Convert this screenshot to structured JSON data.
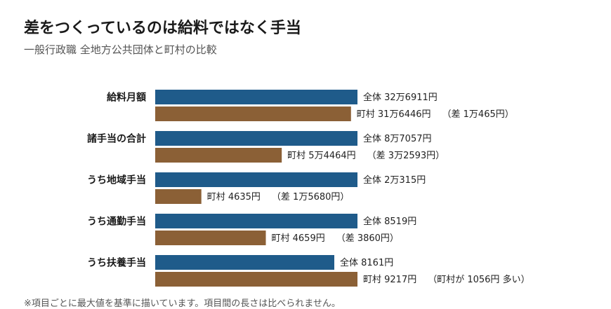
{
  "title": "差をつくっているのは給料ではなく手当",
  "subtitle": "一般行政職 全地方公共団体と町村の比較",
  "footnote": "※項目ごとに最大値を基準に描いています。項目間の長さは比べられません。",
  "colors": {
    "all": "#1f5b8a",
    "town": "#8b6036"
  },
  "chart_data": {
    "type": "bar",
    "orientation": "horizontal",
    "categories": [
      "給料月額",
      "諸手当の合計",
      "うち地域手当",
      "うち通勤手当",
      "うち扶養手当"
    ],
    "series": [
      {
        "name": "全体",
        "values": [
          326911,
          87057,
          20315,
          8519,
          8161
        ]
      },
      {
        "name": "町村",
        "values": [
          316446,
          54464,
          4635,
          4659,
          9217
        ]
      }
    ],
    "labels": {
      "all": [
        "全体 32万6911円",
        "全体 8万7057円",
        "全体 2万315円",
        "全体 8519円",
        "全体 8161円"
      ],
      "town": [
        "町村 31万6446円",
        "町村 5万4464円",
        "町村 4635円",
        "町村 4659円",
        "町村 9217円"
      ],
      "diff": [
        "（差 1万465円）",
        "（差 3万2593円）",
        "（差 1万5680円）",
        "（差 3860円）",
        "（町村が 1056円 多い）"
      ]
    },
    "scale": "per-category maximum"
  }
}
